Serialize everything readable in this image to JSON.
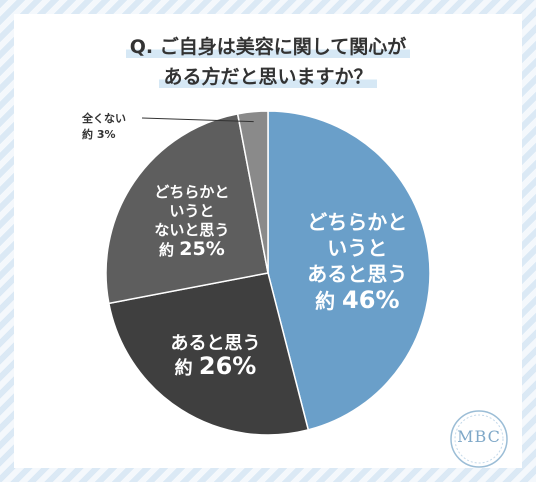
{
  "question": {
    "line1": "Q. ご自身は美容に関して関心が",
    "line2": "ある方だと思いますか？"
  },
  "chart_data": {
    "type": "pie",
    "title": "Q. ご自身は美容に関して関心がある方だと思いますか？",
    "start": "12 o'clock, clockwise",
    "slices": [
      {
        "label": "どちらかというとあると思う",
        "value": 46,
        "prefix": "約",
        "unit": "%",
        "color": "#6a9fc9",
        "label_lines": [
          "どちらかと",
          "いうと",
          "あると思う"
        ]
      },
      {
        "label": "あると思う",
        "value": 26,
        "prefix": "約",
        "unit": "%",
        "color": "#3f3f3f",
        "label_lines": [
          "あると思う"
        ]
      },
      {
        "label": "どちらかというとないと思う",
        "value": 25,
        "prefix": "約",
        "unit": "%",
        "color": "#5e5e5e",
        "label_lines": [
          "どちらかと",
          "いうと",
          "ないと思う"
        ]
      },
      {
        "label": "全くない",
        "value": 3,
        "prefix": "約",
        "unit": "%",
        "color": "#8a8a8a",
        "label_lines": [
          "全くない"
        ]
      }
    ]
  },
  "logo": {
    "text": "MBC"
  },
  "colors": {
    "accent": "#6a9fc9",
    "logo": "#7fa8c8",
    "stripe": "#dbe9f5"
  }
}
